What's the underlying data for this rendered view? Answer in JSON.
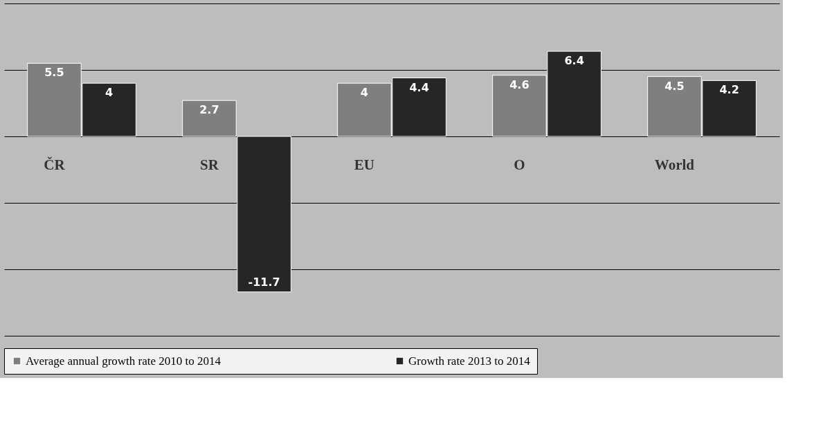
{
  "chart_data": {
    "type": "bar",
    "categories": [
      "ČR",
      "SR",
      "EU",
      "O",
      "World"
    ],
    "series": [
      {
        "name": "Average annual growth rate 2010 to 2014",
        "color": "#7f7f7f",
        "values": [
          5.5,
          2.7,
          4,
          4.6,
          4.5
        ]
      },
      {
        "name": "Growth rate 2013 to 2014",
        "color": "#262626",
        "values": [
          4,
          -11.7,
          4.4,
          6.4,
          4.2
        ]
      }
    ],
    "ylim": [
      -15,
      10
    ],
    "yticks": [
      -15,
      -10,
      -5,
      0,
      5,
      10
    ],
    "grid": "y",
    "tick_labels": false,
    "data_labels": true,
    "legend": "bottom"
  }
}
